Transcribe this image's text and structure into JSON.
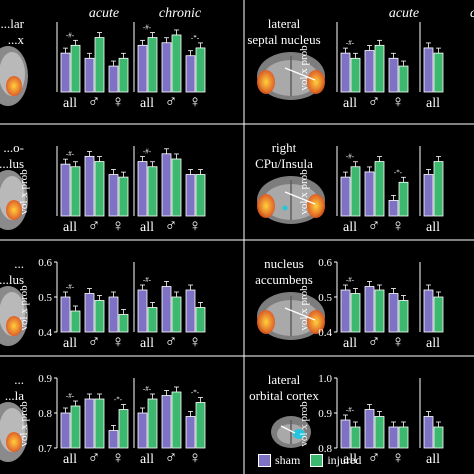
{
  "colors": {
    "sham": "#7e72c4",
    "injured": "#3cb96e",
    "background": "#000000",
    "text": "#ffffff",
    "heat_inner": "#ffd23c",
    "heat_outer": "#e4571a",
    "cyan": "#27c5dc"
  },
  "col_headers": {
    "left": [
      "acute",
      "chronic"
    ],
    "right": [
      "acute",
      "chronic"
    ]
  },
  "legend": {
    "items": [
      {
        "label": "sham",
        "color": "#7e72c4"
      },
      {
        "label": "injured",
        "color": "#3cb96e"
      }
    ]
  },
  "panels": [
    {
      "label": [
        "...lar",
        "...x"
      ],
      "slice": "sagittal-left",
      "ylabel": "",
      "ticks": [],
      "chart_data": [
        {
          "type": "bar",
          "subtitle": "acute",
          "categories": [
            "all",
            "♂",
            "♀"
          ],
          "series": [
            {
              "name": "sham",
              "values": [
                0.6,
                0.58,
                0.55
              ]
            },
            {
              "name": "injured",
              "values": [
                0.63,
                0.66,
                0.58
              ]
            }
          ],
          "ylim": [
            0.45,
            0.72
          ],
          "annotations": [
            "-#-"
          ]
        },
        {
          "type": "bar",
          "subtitle": "chronic",
          "categories": [
            "all",
            "♂",
            "♀"
          ],
          "series": [
            {
              "name": "sham",
              "values": [
                0.63,
                0.64,
                0.59
              ]
            },
            {
              "name": "injured",
              "values": [
                0.66,
                0.67,
                0.62
              ]
            }
          ],
          "ylim": [
            0.45,
            0.72
          ],
          "annotations": [
            "-#-",
            "-*-"
          ]
        }
      ]
    },
    {
      "label": [
        "lateral",
        "septal nucleus"
      ],
      "slice": "coronal-septal",
      "ylabel": "vol x prob",
      "ticks": [],
      "chart_data": [
        {
          "type": "bar",
          "subtitle": "acute",
          "categories": [
            "all",
            "♂",
            "♀"
          ],
          "series": [
            {
              "name": "sham",
              "values": [
                0.6,
                0.61,
                0.58
              ]
            },
            {
              "name": "injured",
              "values": [
                0.58,
                0.63,
                0.55
              ]
            }
          ],
          "ylim": [
            0.45,
            0.72
          ],
          "annotations": [
            "-#-"
          ]
        },
        {
          "type": "bar",
          "subtitle": "chronic",
          "categories": [
            "all"
          ],
          "series": [
            {
              "name": "sham",
              "values": [
                0.62
              ]
            },
            {
              "name": "injured",
              "values": [
                0.6
              ]
            }
          ],
          "ylim": [
            0.45,
            0.72
          ],
          "annotations": []
        }
      ]
    },
    {
      "label": [
        "...o-",
        "...lus"
      ],
      "slice": "sagittal-left",
      "ylabel": "vol x prob",
      "ticks": [],
      "chart_data": [
        {
          "type": "bar",
          "subtitle": "acute",
          "categories": [
            "all",
            "♂",
            "♀"
          ],
          "series": [
            {
              "name": "sham",
              "values": [
                0.65,
                0.68,
                0.61
              ]
            },
            {
              "name": "injured",
              "values": [
                0.64,
                0.66,
                0.6
              ]
            }
          ],
          "ylim": [
            0.45,
            0.72
          ],
          "annotations": [
            "-#-"
          ]
        },
        {
          "type": "bar",
          "subtitle": "chronic",
          "categories": [
            "all",
            "♂",
            "♀"
          ],
          "series": [
            {
              "name": "sham",
              "values": [
                0.66,
                0.69,
                0.61
              ]
            },
            {
              "name": "injured",
              "values": [
                0.64,
                0.67,
                0.61
              ]
            }
          ],
          "ylim": [
            0.45,
            0.72
          ],
          "annotations": [
            "-#-"
          ]
        }
      ]
    },
    {
      "label": [
        "right",
        "CPu/Insula"
      ],
      "slice": "coronal-cpu",
      "ylabel": "vol x prob",
      "ticks": [],
      "chart_data": [
        {
          "type": "bar",
          "subtitle": "acute",
          "categories": [
            "all",
            "♂",
            "♀"
          ],
          "series": [
            {
              "name": "sham",
              "values": [
                0.6,
                0.62,
                0.51
              ]
            },
            {
              "name": "injured",
              "values": [
                0.64,
                0.66,
                0.58
              ]
            }
          ],
          "ylim": [
            0.45,
            0.72
          ],
          "annotations": [
            "-#-",
            "-*-"
          ]
        },
        {
          "type": "bar",
          "subtitle": "chronic",
          "categories": [
            "all"
          ],
          "series": [
            {
              "name": "sham",
              "values": [
                0.61
              ]
            },
            {
              "name": "injured",
              "values": [
                0.66
              ]
            }
          ],
          "ylim": [
            0.45,
            0.72
          ],
          "annotations": []
        }
      ]
    },
    {
      "label": [
        "...",
        "...lus"
      ],
      "slice": "sagittal-left",
      "ylabel": "vol x prob",
      "ticks": [
        "0.6",
        "0.5",
        "0.4"
      ],
      "chart_data": [
        {
          "type": "bar",
          "subtitle": "acute",
          "categories": [
            "all",
            "♂",
            "♀"
          ],
          "series": [
            {
              "name": "sham",
              "values": [
                0.5,
                0.51,
                0.5
              ]
            },
            {
              "name": "injured",
              "values": [
                0.46,
                0.49,
                0.45
              ]
            }
          ],
          "ylim": [
            0.4,
            0.6
          ],
          "annotations": [
            "-#-"
          ]
        },
        {
          "type": "bar",
          "subtitle": "chronic",
          "categories": [
            "all",
            "♂",
            "♀"
          ],
          "series": [
            {
              "name": "sham",
              "values": [
                0.52,
                0.53,
                0.52
              ]
            },
            {
              "name": "injured",
              "values": [
                0.47,
                0.5,
                0.47
              ]
            }
          ],
          "ylim": [
            0.4,
            0.6
          ],
          "annotations": [
            "-#-"
          ]
        }
      ]
    },
    {
      "label": [
        "nucleus",
        "accumbens"
      ],
      "slice": "coronal-accumbens",
      "ylabel": "vol x prob",
      "ticks": [
        "0.6",
        "0.5",
        "0.4"
      ],
      "chart_data": [
        {
          "type": "bar",
          "subtitle": "acute",
          "categories": [
            "all",
            "♂",
            "♀"
          ],
          "series": [
            {
              "name": "sham",
              "values": [
                0.52,
                0.53,
                0.51
              ]
            },
            {
              "name": "injured",
              "values": [
                0.51,
                0.52,
                0.49
              ]
            }
          ],
          "ylim": [
            0.4,
            0.6
          ],
          "annotations": [
            "-#-"
          ]
        },
        {
          "type": "bar",
          "subtitle": "chronic",
          "categories": [
            "all"
          ],
          "series": [
            {
              "name": "sham",
              "values": [
                0.52
              ]
            },
            {
              "name": "injured",
              "values": [
                0.5
              ]
            }
          ],
          "ylim": [
            0.4,
            0.6
          ],
          "annotations": []
        }
      ]
    },
    {
      "label": [
        "...",
        "...la"
      ],
      "slice": "sagittal-left",
      "ylabel": "vol x prob",
      "ticks": [
        "0.9",
        "0.8",
        "0.7"
      ],
      "chart_data": [
        {
          "type": "bar",
          "subtitle": "acute",
          "categories": [
            "all",
            "♂",
            "♀"
          ],
          "series": [
            {
              "name": "sham",
              "values": [
                0.8,
                0.84,
                0.75
              ]
            },
            {
              "name": "injured",
              "values": [
                0.82,
                0.84,
                0.81
              ]
            }
          ],
          "ylim": [
            0.7,
            0.9
          ],
          "annotations": [
            "-#-",
            "-*-"
          ]
        },
        {
          "type": "bar",
          "subtitle": "chronic",
          "categories": [
            "all",
            "♂",
            "♀"
          ],
          "series": [
            {
              "name": "sham",
              "values": [
                0.8,
                0.85,
                0.79
              ]
            },
            {
              "name": "injured",
              "values": [
                0.84,
                0.86,
                0.83
              ]
            }
          ],
          "ylim": [
            0.7,
            0.9
          ],
          "annotations": [
            "-#-",
            "-*-"
          ]
        }
      ]
    },
    {
      "label": [
        "lateral",
        "orbital cortex"
      ],
      "slice": "coronal-orbital",
      "ylabel": "vol x prob",
      "ticks": [
        "1.0",
        "0.9",
        "0.8"
      ],
      "chart_data": [
        {
          "type": "bar",
          "subtitle": "acute",
          "categories": [
            "all",
            "♂",
            "♀"
          ],
          "series": [
            {
              "name": "sham",
              "values": [
                0.88,
                0.91,
                0.86
              ]
            },
            {
              "name": "injured",
              "values": [
                0.86,
                0.89,
                0.86
              ]
            }
          ],
          "ylim": [
            0.8,
            1.0
          ],
          "annotations": [
            "-#-"
          ]
        },
        {
          "type": "bar",
          "subtitle": "chronic",
          "categories": [
            "all"
          ],
          "series": [
            {
              "name": "sham",
              "values": [
                0.89
              ]
            },
            {
              "name": "injured",
              "values": [
                0.86
              ]
            }
          ],
          "ylim": [
            0.8,
            1.0
          ],
          "annotations": []
        }
      ]
    }
  ]
}
